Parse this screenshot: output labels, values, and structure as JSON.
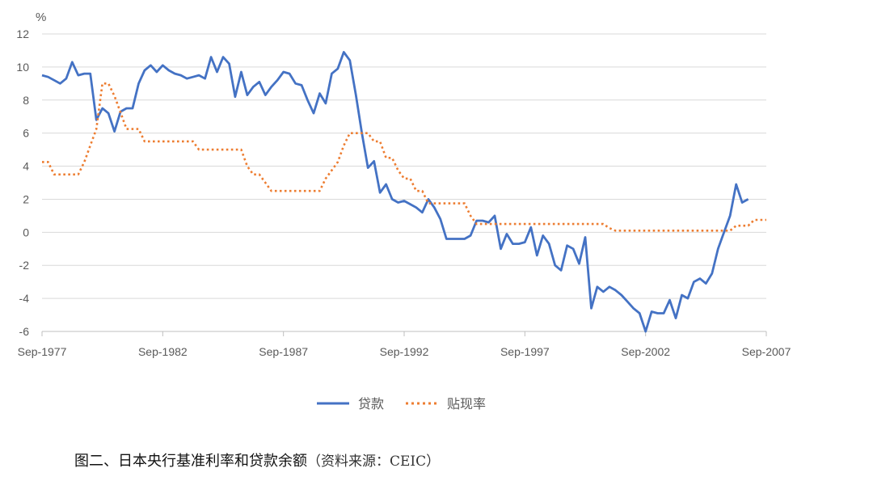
{
  "chart_data": {
    "type": "line",
    "title": "",
    "xlabel": "",
    "ylabel": "",
    "y_unit": "%",
    "ylim": [
      -6,
      12
    ],
    "yticks": [
      12,
      10,
      8,
      6,
      4,
      2,
      0,
      -2,
      -4,
      -6
    ],
    "xlim": [
      1977.75,
      2007.75
    ],
    "xtick_labels": [
      "Sep-1977",
      "Sep-1982",
      "Sep-1987",
      "Sep-1992",
      "Sep-1997",
      "Sep-2002",
      "Sep-2007"
    ],
    "xtick_values": [
      1977.75,
      1982.75,
      1987.75,
      1992.75,
      1997.75,
      2002.75,
      2007.75
    ],
    "grid": true,
    "legend_position": "bottom",
    "series": [
      {
        "name": "贷款",
        "color": "#4472C4",
        "style": "solid",
        "points": [
          [
            1977.75,
            9.5
          ],
          [
            1978.0,
            9.4
          ],
          [
            1978.25,
            9.2
          ],
          [
            1978.5,
            9.0
          ],
          [
            1978.75,
            9.3
          ],
          [
            1979.0,
            10.3
          ],
          [
            1979.25,
            9.5
          ],
          [
            1979.5,
            9.6
          ],
          [
            1979.75,
            9.6
          ],
          [
            1980.0,
            6.8
          ],
          [
            1980.25,
            7.5
          ],
          [
            1980.5,
            7.2
          ],
          [
            1980.75,
            6.1
          ],
          [
            1981.0,
            7.3
          ],
          [
            1981.25,
            7.5
          ],
          [
            1981.5,
            7.5
          ],
          [
            1981.75,
            9.0
          ],
          [
            1982.0,
            9.8
          ],
          [
            1982.25,
            10.1
          ],
          [
            1982.5,
            9.7
          ],
          [
            1982.75,
            10.1
          ],
          [
            1983.0,
            9.8
          ],
          [
            1983.25,
            9.6
          ],
          [
            1983.5,
            9.5
          ],
          [
            1983.75,
            9.3
          ],
          [
            1984.0,
            9.4
          ],
          [
            1984.25,
            9.5
          ],
          [
            1984.5,
            9.3
          ],
          [
            1984.75,
            10.6
          ],
          [
            1985.0,
            9.7
          ],
          [
            1985.25,
            10.6
          ],
          [
            1985.5,
            10.2
          ],
          [
            1985.75,
            8.2
          ],
          [
            1986.0,
            9.7
          ],
          [
            1986.25,
            8.3
          ],
          [
            1986.5,
            8.8
          ],
          [
            1986.75,
            9.1
          ],
          [
            1987.0,
            8.3
          ],
          [
            1987.25,
            8.8
          ],
          [
            1987.5,
            9.2
          ],
          [
            1987.75,
            9.7
          ],
          [
            1988.0,
            9.6
          ],
          [
            1988.25,
            9.0
          ],
          [
            1988.5,
            8.9
          ],
          [
            1988.75,
            8.0
          ],
          [
            1989.0,
            7.2
          ],
          [
            1989.25,
            8.4
          ],
          [
            1989.5,
            7.8
          ],
          [
            1989.75,
            9.6
          ],
          [
            1990.0,
            9.9
          ],
          [
            1990.25,
            10.9
          ],
          [
            1990.5,
            10.4
          ],
          [
            1990.75,
            8.3
          ],
          [
            1991.0,
            6.0
          ],
          [
            1991.25,
            3.9
          ],
          [
            1991.5,
            4.3
          ],
          [
            1991.75,
            2.4
          ],
          [
            1992.0,
            2.9
          ],
          [
            1992.25,
            2.0
          ],
          [
            1992.5,
            1.8
          ],
          [
            1992.75,
            1.9
          ],
          [
            1993.0,
            1.7
          ],
          [
            1993.25,
            1.5
          ],
          [
            1993.5,
            1.2
          ],
          [
            1993.75,
            2.0
          ],
          [
            1994.0,
            1.5
          ],
          [
            1994.25,
            0.8
          ],
          [
            1994.5,
            -0.4
          ],
          [
            1994.75,
            -0.4
          ],
          [
            1995.0,
            -0.4
          ],
          [
            1995.25,
            -0.4
          ],
          [
            1995.5,
            -0.2
          ],
          [
            1995.75,
            0.7
          ],
          [
            1996.0,
            0.7
          ],
          [
            1996.25,
            0.6
          ],
          [
            1996.5,
            1.0
          ],
          [
            1996.75,
            -1.0
          ],
          [
            1997.0,
            -0.1
          ],
          [
            1997.25,
            -0.7
          ],
          [
            1997.5,
            -0.7
          ],
          [
            1997.75,
            -0.6
          ],
          [
            1998.0,
            0.3
          ],
          [
            1998.25,
            -1.4
          ],
          [
            1998.5,
            -0.2
          ],
          [
            1998.75,
            -0.7
          ],
          [
            1999.0,
            -2.0
          ],
          [
            1999.25,
            -2.3
          ],
          [
            1999.5,
            -0.8
          ],
          [
            1999.75,
            -1.0
          ],
          [
            2000.0,
            -1.9
          ],
          [
            2000.25,
            -0.3
          ],
          [
            2000.5,
            -4.6
          ],
          [
            2000.75,
            -3.3
          ],
          [
            2001.0,
            -3.6
          ],
          [
            2001.25,
            -3.3
          ],
          [
            2001.5,
            -3.5
          ],
          [
            2001.75,
            -3.8
          ],
          [
            2002.0,
            -4.2
          ],
          [
            2002.25,
            -4.6
          ],
          [
            2002.5,
            -4.9
          ],
          [
            2002.75,
            -6.0
          ],
          [
            2003.0,
            -4.8
          ],
          [
            2003.25,
            -4.9
          ],
          [
            2003.5,
            -4.9
          ],
          [
            2003.75,
            -4.1
          ],
          [
            2004.0,
            -5.2
          ],
          [
            2004.25,
            -3.8
          ],
          [
            2004.5,
            -4.0
          ],
          [
            2004.75,
            -3.0
          ],
          [
            2005.0,
            -2.8
          ],
          [
            2005.25,
            -3.1
          ],
          [
            2005.5,
            -2.5
          ],
          [
            2005.75,
            -1.0
          ],
          [
            2006.0,
            0.0
          ],
          [
            2006.25,
            1.0
          ],
          [
            2006.5,
            2.9
          ],
          [
            2006.75,
            1.8
          ],
          [
            2007.0,
            2.0
          ]
        ]
      },
      {
        "name": "贴现率",
        "color": "#ED7D31",
        "style": "dotted",
        "points": [
          [
            1977.75,
            4.25
          ],
          [
            1978.0,
            4.25
          ],
          [
            1978.25,
            3.5
          ],
          [
            1979.25,
            3.5
          ],
          [
            1979.5,
            4.25
          ],
          [
            1979.75,
            5.25
          ],
          [
            1980.0,
            6.25
          ],
          [
            1980.25,
            9.0
          ],
          [
            1980.5,
            9.0
          ],
          [
            1980.75,
            8.25
          ],
          [
            1981.0,
            7.25
          ],
          [
            1981.25,
            6.25
          ],
          [
            1981.75,
            6.25
          ],
          [
            1982.0,
            5.5
          ],
          [
            1984.0,
            5.5
          ],
          [
            1984.25,
            5.0
          ],
          [
            1986.0,
            5.0
          ],
          [
            1986.25,
            4.0
          ],
          [
            1986.5,
            3.5
          ],
          [
            1986.75,
            3.5
          ],
          [
            1987.0,
            3.0
          ],
          [
            1987.25,
            2.5
          ],
          [
            1989.25,
            2.5
          ],
          [
            1989.5,
            3.25
          ],
          [
            1989.75,
            3.75
          ],
          [
            1990.0,
            4.25
          ],
          [
            1990.25,
            5.25
          ],
          [
            1990.5,
            6.0
          ],
          [
            1991.25,
            6.0
          ],
          [
            1991.5,
            5.5
          ],
          [
            1991.75,
            5.5
          ],
          [
            1992.0,
            4.5
          ],
          [
            1992.25,
            4.5
          ],
          [
            1992.5,
            3.75
          ],
          [
            1992.75,
            3.25
          ],
          [
            1993.0,
            3.25
          ],
          [
            1993.25,
            2.5
          ],
          [
            1993.5,
            2.5
          ],
          [
            1993.75,
            1.75
          ],
          [
            1995.25,
            1.75
          ],
          [
            1995.5,
            1.0
          ],
          [
            1995.75,
            0.5
          ],
          [
            2001.0,
            0.5
          ],
          [
            2001.25,
            0.25
          ],
          [
            2001.5,
            0.1
          ],
          [
            2006.25,
            0.1
          ],
          [
            2006.5,
            0.4
          ],
          [
            2007.0,
            0.4
          ],
          [
            2007.25,
            0.75
          ],
          [
            2007.75,
            0.75
          ]
        ]
      }
    ]
  },
  "caption": {
    "text": "图二、日本央行基准利率和贷款余额",
    "source": "（资料来源：CEIC）"
  }
}
